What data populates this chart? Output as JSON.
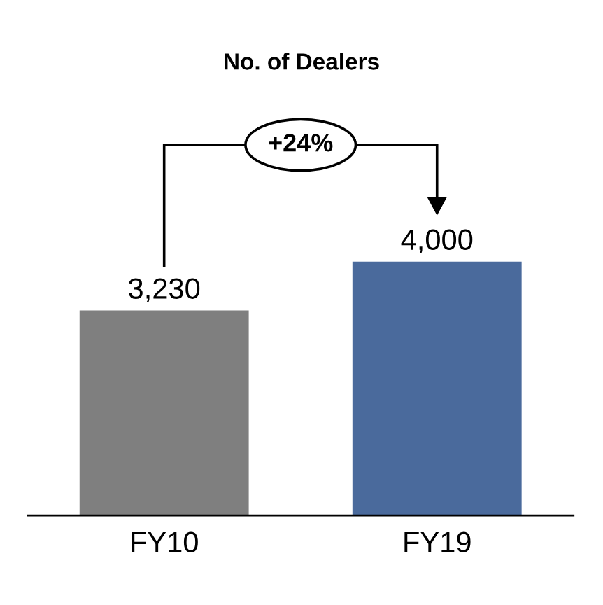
{
  "chart_data": {
    "type": "bar",
    "title": "No. of Dealers",
    "categories": [
      "FY10",
      "FY19"
    ],
    "values": [
      3230,
      4000
    ],
    "value_labels": [
      "3,230",
      "4,000"
    ],
    "colors": [
      "#7f7f7f",
      "#4a6a9c"
    ],
    "annotations": [
      "+24%"
    ],
    "grid": false,
    "legend": false
  }
}
